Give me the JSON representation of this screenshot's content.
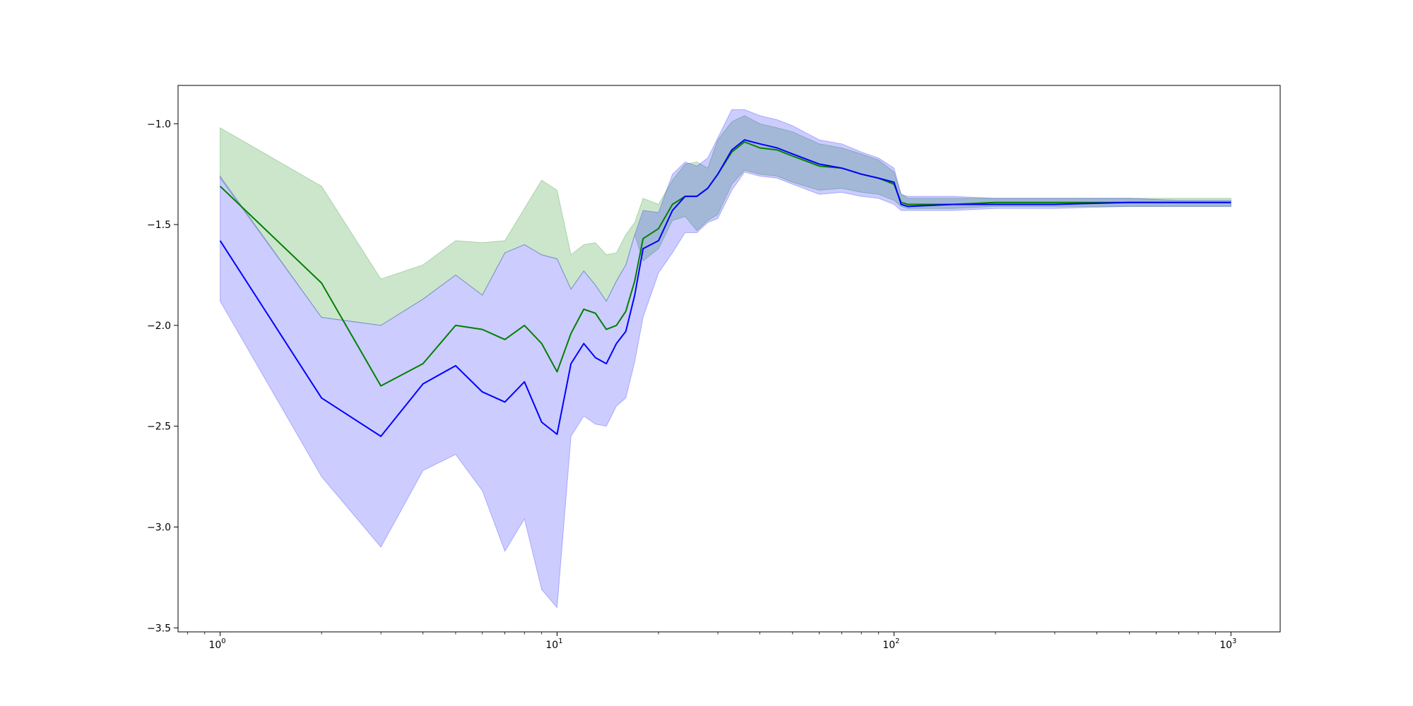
{
  "chart_data": {
    "type": "line",
    "title": "",
    "xlabel": "",
    "ylabel": "",
    "xscale": "log",
    "xlim": [
      0.75,
      1400
    ],
    "ylim": [
      -3.52,
      -0.81
    ],
    "grid": false,
    "x_ticks": [
      {
        "value": 1,
        "base": "10",
        "exp": "0"
      },
      {
        "value": 10,
        "base": "10",
        "exp": "1"
      },
      {
        "value": 100,
        "base": "10",
        "exp": "2"
      },
      {
        "value": 1000,
        "base": "10",
        "exp": "3"
      }
    ],
    "y_ticks": [
      {
        "value": -1.0,
        "label": "−1.0"
      },
      {
        "value": -1.5,
        "label": "−1.5"
      },
      {
        "value": -2.0,
        "label": "−2.0"
      },
      {
        "value": -2.5,
        "label": "−2.5"
      },
      {
        "value": -3.0,
        "label": "−3.0"
      },
      {
        "value": -3.5,
        "label": "−3.5"
      }
    ],
    "series": [
      {
        "color": "#008000",
        "band_color": "#008000",
        "band_opacity": 0.2,
        "x": [
          1,
          2,
          3,
          4,
          5,
          6,
          7,
          8,
          9,
          10,
          11,
          12,
          13,
          14,
          15,
          16,
          17,
          18,
          20,
          22,
          24,
          26,
          28,
          30,
          33,
          36,
          40,
          45,
          50,
          60,
          70,
          80,
          90,
          100,
          105,
          110,
          150,
          200,
          300,
          500,
          700,
          1000
        ],
        "y": [
          -1.31,
          -1.79,
          -2.3,
          -2.19,
          -2.0,
          -2.02,
          -2.07,
          -2.0,
          -2.09,
          -2.23,
          -2.04,
          -1.92,
          -1.94,
          -2.02,
          -2.0,
          -1.93,
          -1.78,
          -1.57,
          -1.52,
          -1.4,
          -1.36,
          -1.36,
          -1.32,
          -1.25,
          -1.14,
          -1.09,
          -1.12,
          -1.13,
          -1.16,
          -1.21,
          -1.22,
          -1.25,
          -1.27,
          -1.3,
          -1.39,
          -1.4,
          -1.4,
          -1.39,
          -1.39,
          -1.39,
          -1.39,
          -1.39
        ],
        "lower": [
          -1.27,
          -1.96,
          -2.0,
          -1.87,
          -1.75,
          -1.85,
          -1.64,
          -1.6,
          -1.65,
          -1.67,
          -1.82,
          -1.73,
          -1.8,
          -1.88,
          -1.78,
          -1.7,
          -1.55,
          -1.68,
          -1.62,
          -1.48,
          -1.46,
          -1.53,
          -1.48,
          -1.45,
          -1.3,
          -1.23,
          -1.25,
          -1.26,
          -1.29,
          -1.33,
          -1.32,
          -1.34,
          -1.35,
          -1.38,
          -1.41,
          -1.42,
          -1.42,
          -1.41,
          -1.41,
          -1.41,
          -1.41,
          -1.41
        ],
        "upper": [
          -1.02,
          -1.31,
          -1.77,
          -1.7,
          -1.58,
          -1.59,
          -1.58,
          -1.42,
          -1.28,
          -1.33,
          -1.65,
          -1.6,
          -1.59,
          -1.65,
          -1.64,
          -1.55,
          -1.49,
          -1.37,
          -1.4,
          -1.28,
          -1.2,
          -1.19,
          -1.22,
          -1.08,
          -0.99,
          -0.96,
          -1.0,
          -1.02,
          -1.04,
          -1.1,
          -1.12,
          -1.15,
          -1.18,
          -1.24,
          -1.35,
          -1.37,
          -1.37,
          -1.37,
          -1.37,
          -1.37,
          -1.37,
          -1.37
        ]
      },
      {
        "color": "#0000ff",
        "band_color": "#0000ff",
        "band_opacity": 0.2,
        "x": [
          1,
          2,
          3,
          4,
          5,
          6,
          7,
          8,
          9,
          10,
          11,
          12,
          13,
          14,
          15,
          16,
          17,
          18,
          20,
          22,
          24,
          26,
          28,
          30,
          33,
          36,
          40,
          45,
          50,
          60,
          70,
          80,
          90,
          100,
          105,
          110,
          150,
          200,
          300,
          500,
          700,
          1000
        ],
        "y": [
          -1.58,
          -2.36,
          -2.55,
          -2.29,
          -2.2,
          -2.33,
          -2.38,
          -2.28,
          -2.48,
          -2.54,
          -2.19,
          -2.09,
          -2.16,
          -2.19,
          -2.09,
          -2.03,
          -1.85,
          -1.62,
          -1.58,
          -1.43,
          -1.36,
          -1.36,
          -1.32,
          -1.25,
          -1.13,
          -1.08,
          -1.1,
          -1.12,
          -1.15,
          -1.2,
          -1.22,
          -1.25,
          -1.27,
          -1.29,
          -1.4,
          -1.41,
          -1.4,
          -1.4,
          -1.4,
          -1.39,
          -1.39,
          -1.39
        ],
        "lower": [
          -1.88,
          -2.75,
          -3.1,
          -2.72,
          -2.64,
          -2.82,
          -3.12,
          -2.96,
          -3.31,
          -3.4,
          -2.55,
          -2.45,
          -2.49,
          -2.5,
          -2.4,
          -2.36,
          -2.18,
          -1.96,
          -1.74,
          -1.64,
          -1.54,
          -1.54,
          -1.49,
          -1.47,
          -1.33,
          -1.24,
          -1.26,
          -1.27,
          -1.3,
          -1.35,
          -1.34,
          -1.36,
          -1.37,
          -1.4,
          -1.43,
          -1.43,
          -1.43,
          -1.42,
          -1.42,
          -1.41,
          -1.41,
          -1.41
        ],
        "upper": [
          -1.26,
          -1.96,
          -2.0,
          -1.87,
          -1.75,
          -1.85,
          -1.64,
          -1.6,
          -1.65,
          -1.67,
          -1.82,
          -1.73,
          -1.8,
          -1.88,
          -1.78,
          -1.7,
          -1.55,
          -1.43,
          -1.44,
          -1.25,
          -1.19,
          -1.21,
          -1.17,
          -1.07,
          -0.93,
          -0.93,
          -0.96,
          -0.98,
          -1.01,
          -1.08,
          -1.1,
          -1.14,
          -1.17,
          -1.22,
          -1.35,
          -1.36,
          -1.36,
          -1.37,
          -1.37,
          -1.37,
          -1.38,
          -1.38
        ]
      }
    ]
  }
}
